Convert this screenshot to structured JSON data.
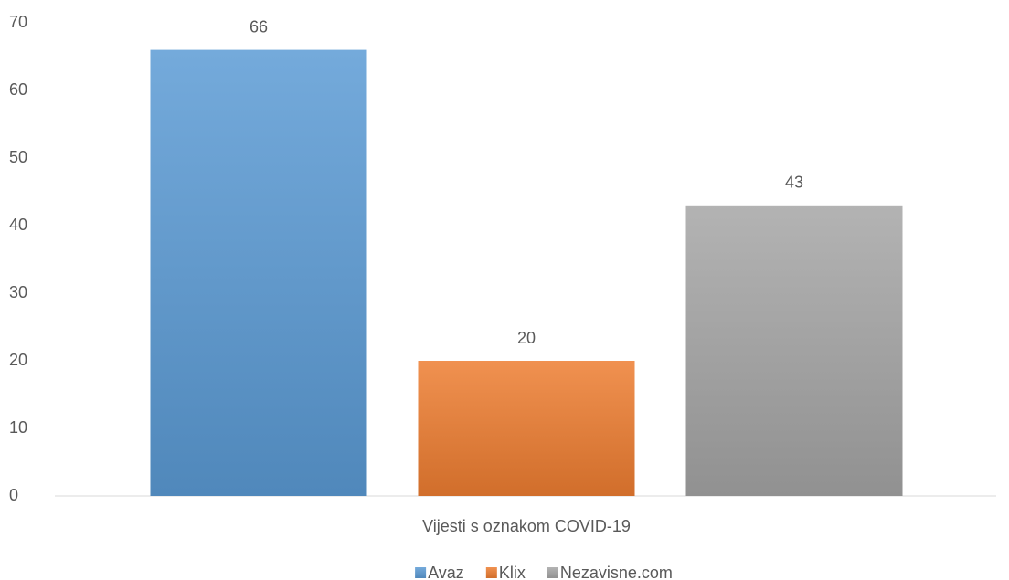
{
  "chart_data": {
    "type": "bar",
    "categories": [
      "Vijesti s oznakom COVID-19"
    ],
    "series": [
      {
        "name": "Avaz",
        "color": "#5b9bd5",
        "values": [
          66
        ]
      },
      {
        "name": "Klix",
        "color": "#ed7d31",
        "values": [
          20
        ]
      },
      {
        "name": "Nezavisne.com",
        "color": "#a5a5a5",
        "values": [
          43
        ]
      }
    ],
    "ylim": [
      0,
      70
    ],
    "yticks": [
      0,
      10,
      20,
      30,
      40,
      50,
      60,
      70
    ],
    "grid": false,
    "data_labels": true,
    "legend": "bottom"
  }
}
